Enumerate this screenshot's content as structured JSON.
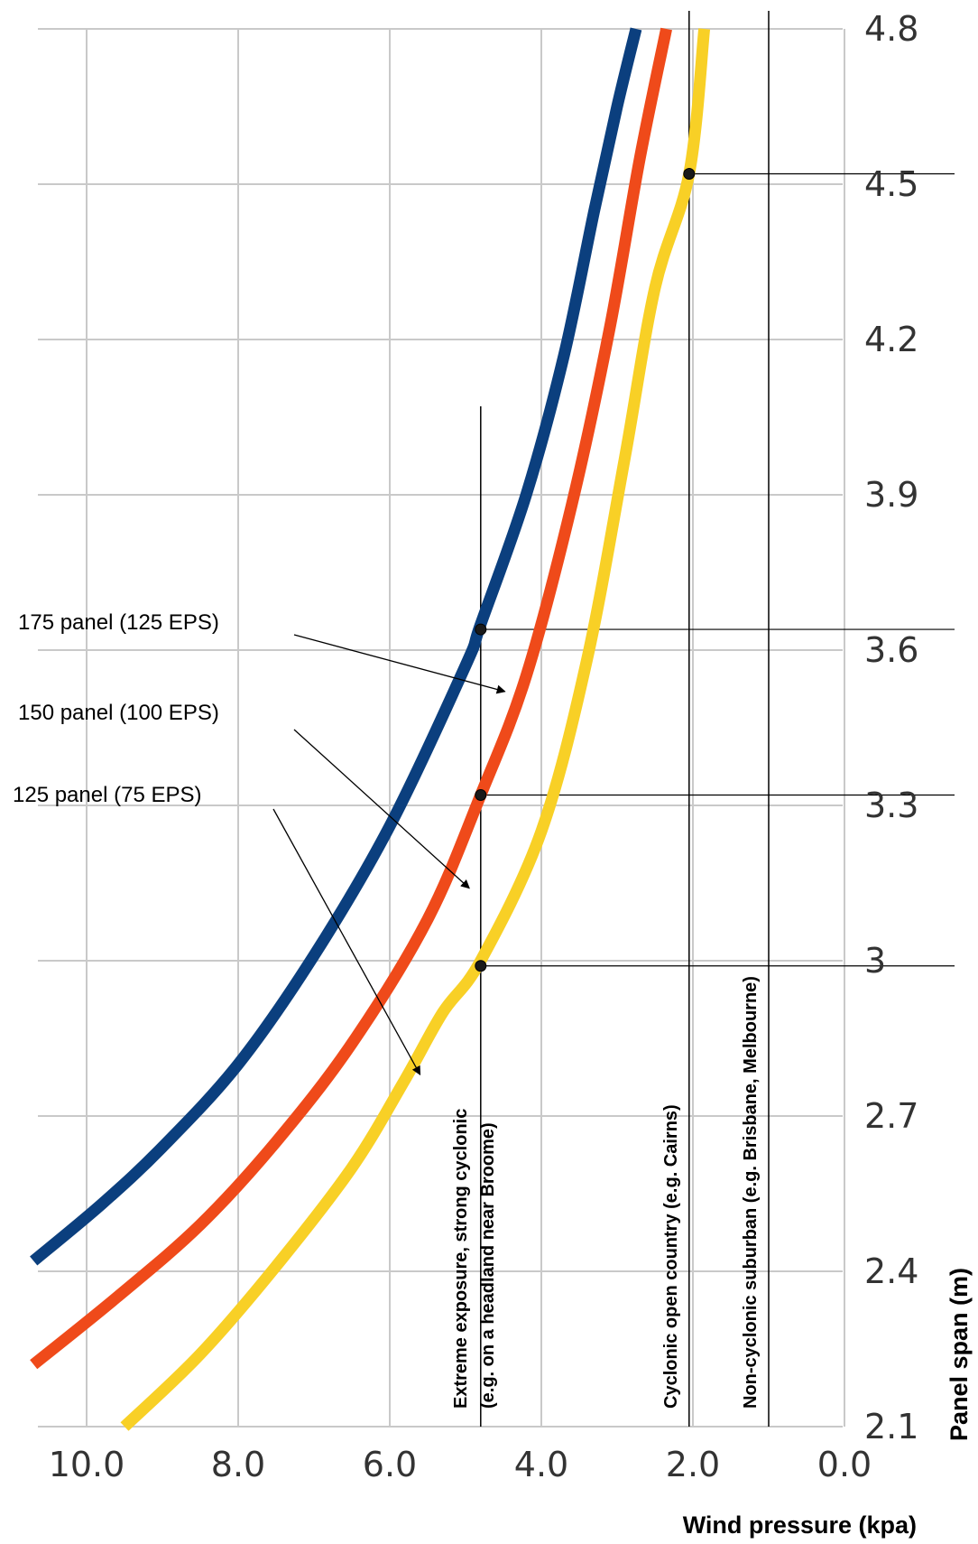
{
  "chart_data": {
    "type": "line",
    "xlabel": "Wind pressure (kpa)",
    "ylabel": "Panel span (m)",
    "x_reversed": true,
    "xlim": [
      10.7,
      0.0
    ],
    "ylim": [
      2.1,
      4.8
    ],
    "xticks": [
      "10.0",
      "8.0",
      "6.0",
      "4.0",
      "2.0",
      "0.0"
    ],
    "yticks": [
      "2.1",
      "2.4",
      "2.7",
      "3",
      "3.3",
      "3.6",
      "3.9",
      "4.2",
      "4.5",
      "4.8"
    ],
    "grid": true,
    "series": [
      {
        "name": "175 panel (125 EPS)",
        "color": "#0b3f7e",
        "points": [
          [
            10.7,
            2.42
          ],
          [
            9.8,
            2.53
          ],
          [
            9.0,
            2.64
          ],
          [
            8.0,
            2.8
          ],
          [
            7.0,
            3.01
          ],
          [
            6.0,
            3.26
          ],
          [
            5.0,
            3.57
          ],
          [
            4.8,
            3.65
          ],
          [
            4.2,
            3.9
          ],
          [
            3.7,
            4.17
          ],
          [
            3.3,
            4.45
          ],
          [
            3.0,
            4.65
          ],
          [
            2.75,
            4.8
          ]
        ]
      },
      {
        "name": "150 panel (100 EPS)",
        "color": "#ef4a1a",
        "points": [
          [
            10.7,
            2.22
          ],
          [
            9.6,
            2.35
          ],
          [
            8.5,
            2.49
          ],
          [
            7.5,
            2.65
          ],
          [
            6.5,
            2.84
          ],
          [
            5.5,
            3.08
          ],
          [
            4.8,
            3.32
          ],
          [
            4.2,
            3.55
          ],
          [
            3.6,
            3.88
          ],
          [
            3.1,
            4.22
          ],
          [
            2.7,
            4.55
          ],
          [
            2.35,
            4.8
          ]
        ]
      },
      {
        "name": "125 panel (75 EPS)",
        "color": "#f8d026",
        "points": [
          [
            9.5,
            2.1
          ],
          [
            8.5,
            2.24
          ],
          [
            7.5,
            2.41
          ],
          [
            6.5,
            2.6
          ],
          [
            5.8,
            2.77
          ],
          [
            5.3,
            2.9
          ],
          [
            4.8,
            3.0
          ],
          [
            4.0,
            3.25
          ],
          [
            3.4,
            3.58
          ],
          [
            2.9,
            3.97
          ],
          [
            2.5,
            4.3
          ],
          [
            2.05,
            4.52
          ],
          [
            1.85,
            4.8
          ]
        ]
      }
    ],
    "reference_lines": [
      {
        "x": 4.8,
        "label_line1": "Extreme exposure, strong cyclonic",
        "label_line2": "(e.g. on a headland near Broome)"
      },
      {
        "x": 2.05,
        "label_line1": "Cyclonic open country (e.g. Cairns)"
      },
      {
        "x": 1.0,
        "label_line1": "Non-cyclonic suburban (e.g. Brisbane, Melbourne)"
      }
    ],
    "marked_points": [
      {
        "x": 4.8,
        "y": 3.64
      },
      {
        "x": 4.8,
        "y": 3.32
      },
      {
        "x": 4.8,
        "y": 2.99
      },
      {
        "x": 2.05,
        "y": 4.52
      }
    ]
  }
}
